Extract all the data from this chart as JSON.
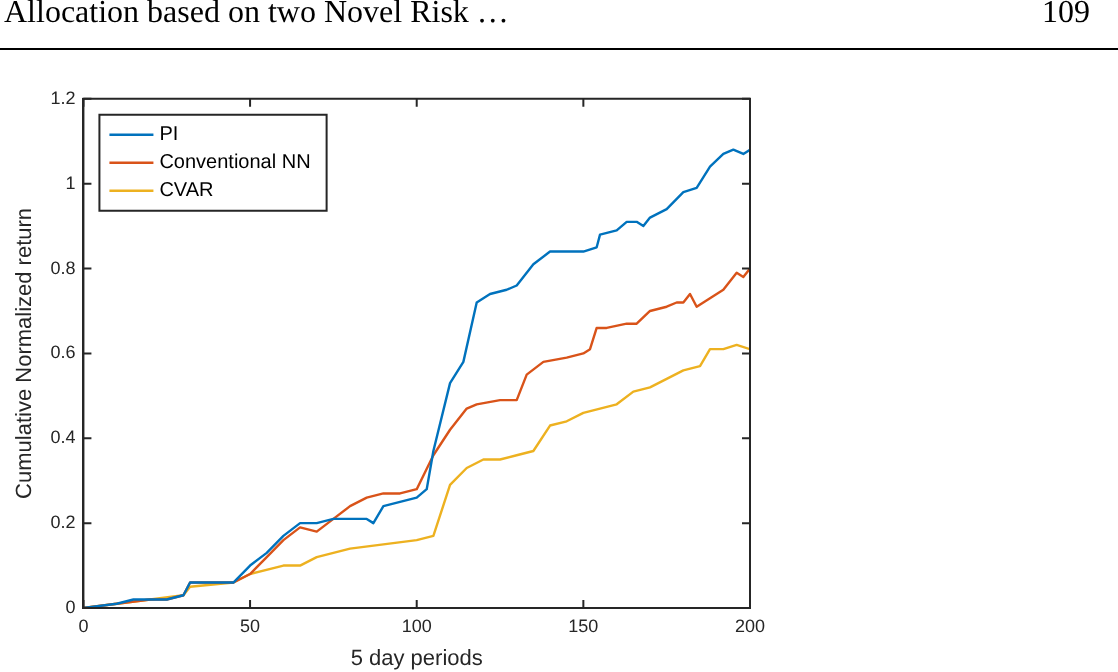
{
  "chart_data": {
    "type": "line",
    "xlabel": "5 day periods",
    "ylabel": "Cumulative Normalized return",
    "annotations": [
      "Allocation based on two Novel Risk …",
      "109"
    ],
    "xlim": [
      0,
      200
    ],
    "xticks": [
      0,
      50,
      100,
      150,
      200
    ],
    "ylim": [
      0,
      1.2
    ],
    "yticks": [
      0,
      0.2,
      0.4,
      0.6,
      0.8,
      1,
      1.2
    ],
    "grid": false,
    "legend": "top left",
    "marker": "none",
    "line_style": "solid",
    "series": [
      {
        "name": "PI",
        "color": "#0072bd",
        "x": [
          0,
          10,
          15,
          20,
          25,
          30,
          32,
          40,
          45,
          50,
          55,
          60,
          65,
          70,
          75,
          80,
          85,
          87,
          90,
          95,
          100,
          103,
          105,
          110,
          114,
          118,
          122,
          127,
          130,
          135,
          140,
          145,
          150,
          154,
          155,
          160,
          163,
          166,
          168,
          170,
          175,
          180,
          184,
          188,
          192,
          195,
          198,
          200
        ],
        "values": [
          0,
          0.01,
          0.02,
          0.02,
          0.02,
          0.03,
          0.06,
          0.06,
          0.06,
          0.1,
          0.13,
          0.17,
          0.2,
          0.2,
          0.21,
          0.21,
          0.21,
          0.2,
          0.24,
          0.25,
          0.26,
          0.28,
          0.37,
          0.53,
          0.58,
          0.72,
          0.74,
          0.75,
          0.76,
          0.81,
          0.84,
          0.84,
          0.84,
          0.85,
          0.88,
          0.89,
          0.91,
          0.91,
          0.9,
          0.92,
          0.94,
          0.98,
          0.99,
          1.04,
          1.07,
          1.08,
          1.07,
          1.08
        ]
      },
      {
        "name": "Conventional NN",
        "color": "#d95319",
        "x": [
          0,
          10,
          20,
          25,
          30,
          32,
          45,
          50,
          55,
          60,
          65,
          70,
          75,
          80,
          85,
          90,
          95,
          100,
          105,
          110,
          115,
          118,
          125,
          130,
          133,
          138,
          145,
          150,
          152,
          154,
          157,
          163,
          166,
          170,
          175,
          178,
          180,
          182,
          184,
          188,
          192,
          196,
          198,
          200
        ],
        "values": [
          0,
          0.01,
          0.02,
          0.02,
          0.03,
          0.06,
          0.06,
          0.08,
          0.12,
          0.16,
          0.19,
          0.18,
          0.21,
          0.24,
          0.26,
          0.27,
          0.27,
          0.28,
          0.36,
          0.42,
          0.47,
          0.48,
          0.49,
          0.49,
          0.55,
          0.58,
          0.59,
          0.6,
          0.61,
          0.66,
          0.66,
          0.67,
          0.67,
          0.7,
          0.71,
          0.72,
          0.72,
          0.74,
          0.71,
          0.73,
          0.75,
          0.79,
          0.78,
          0.8
        ]
      },
      {
        "name": "CVAR",
        "color": "#edb120",
        "x": [
          0,
          10,
          20,
          30,
          32,
          45,
          50,
          60,
          65,
          70,
          80,
          90,
          100,
          105,
          110,
          115,
          120,
          125,
          130,
          135,
          140,
          145,
          150,
          155,
          160,
          165,
          170,
          175,
          180,
          185,
          188,
          192,
          196,
          200
        ],
        "values": [
          0,
          0.01,
          0.02,
          0.03,
          0.05,
          0.06,
          0.08,
          0.1,
          0.1,
          0.12,
          0.14,
          0.15,
          0.16,
          0.17,
          0.29,
          0.33,
          0.35,
          0.35,
          0.36,
          0.37,
          0.43,
          0.44,
          0.46,
          0.47,
          0.48,
          0.51,
          0.52,
          0.54,
          0.56,
          0.57,
          0.61,
          0.61,
          0.62,
          0.61
        ]
      }
    ]
  }
}
